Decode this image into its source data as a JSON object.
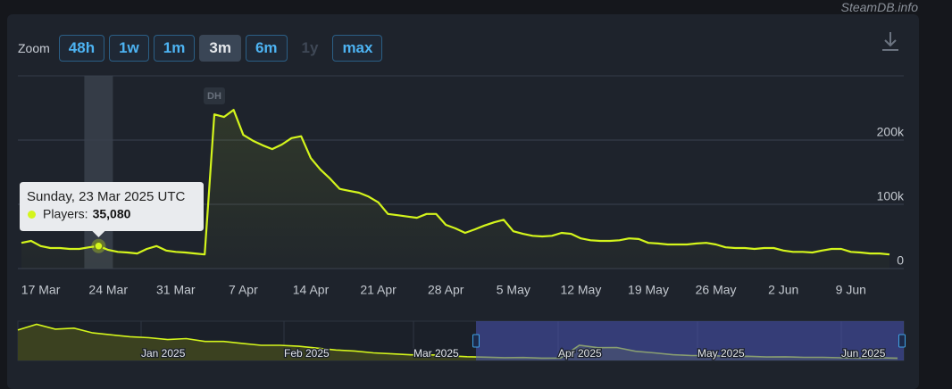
{
  "credits": "SteamDB.info",
  "zoom": {
    "label": "Zoom",
    "buttons": [
      "48h",
      "1w",
      "1m",
      "3m",
      "6m",
      "1y",
      "max"
    ],
    "active": "3m",
    "disabled": [
      "1y"
    ]
  },
  "chart_data": {
    "type": "line",
    "x": [
      "15 Mar",
      "16 Mar",
      "17 Mar",
      "18 Mar",
      "19 Mar",
      "20 Mar",
      "21 Mar",
      "22 Mar",
      "23 Mar",
      "24 Mar",
      "25 Mar",
      "26 Mar",
      "27 Mar",
      "28 Mar",
      "29 Mar",
      "30 Mar",
      "31 Mar",
      "1 Apr",
      "2 Apr",
      "3 Apr",
      "4 Apr",
      "5 Apr",
      "6 Apr",
      "7 Apr",
      "8 Apr",
      "9 Apr",
      "10 Apr",
      "11 Apr",
      "12 Apr",
      "13 Apr",
      "14 Apr",
      "15 Apr",
      "16 Apr",
      "17 Apr",
      "18 Apr",
      "19 Apr",
      "20 Apr",
      "21 Apr",
      "22 Apr",
      "23 Apr",
      "24 Apr",
      "25 Apr",
      "26 Apr",
      "27 Apr",
      "28 Apr",
      "29 Apr",
      "30 Apr",
      "1 May",
      "2 May",
      "3 May",
      "4 May",
      "5 May",
      "6 May",
      "7 May",
      "8 May",
      "9 May",
      "10 May",
      "11 May",
      "12 May",
      "13 May",
      "14 May",
      "15 May",
      "16 May",
      "17 May",
      "18 May",
      "19 May",
      "20 May",
      "21 May",
      "22 May",
      "23 May",
      "24 May",
      "25 May",
      "26 May",
      "27 May",
      "28 May",
      "29 May",
      "30 May",
      "31 May",
      "1 Jun",
      "2 Jun",
      "3 Jun",
      "4 Jun",
      "5 Jun",
      "6 Jun",
      "7 Jun",
      "8 Jun",
      "9 Jun",
      "10 Jun",
      "11 Jun",
      "12 Jun",
      "13 Jun"
    ],
    "series": [
      {
        "name": "Players:",
        "color": "#d4f51c",
        "values": [
          40000,
          43000,
          35000,
          32000,
          32000,
          30500,
          30500,
          33000,
          35080,
          29000,
          26000,
          25000,
          23500,
          30500,
          35000,
          28000,
          26000,
          25000,
          23500,
          22000,
          240000,
          236000,
          247000,
          208000,
          199000,
          192000,
          186000,
          193000,
          203000,
          206000,
          172000,
          154000,
          140000,
          124000,
          121000,
          118000,
          112000,
          103000,
          85000,
          83000,
          81000,
          79000,
          85000,
          85000,
          68000,
          62500,
          55500,
          61000,
          67000,
          72000,
          76000,
          58000,
          54000,
          51000,
          50000,
          51000,
          55500,
          54000,
          47000,
          44000,
          43000,
          43000,
          44000,
          47000,
          46000,
          40000,
          39000,
          37500,
          37500,
          37500,
          39000,
          40000,
          37500,
          33000,
          32000,
          32000,
          30500,
          32000,
          32000,
          28000,
          26000,
          26000,
          25000,
          28000,
          30500,
          30500,
          26000,
          25000,
          23500,
          23500,
          22000
        ],
        "value_labels": [
          null,
          null,
          null,
          null,
          null,
          null,
          null,
          null,
          "35,080",
          null,
          null,
          null,
          null,
          null,
          null,
          null,
          null,
          null,
          null,
          null,
          null,
          null,
          null,
          null,
          null,
          null,
          null,
          null,
          null,
          null,
          null,
          null,
          null,
          null,
          null,
          null,
          null,
          null,
          null,
          null,
          null,
          null,
          null,
          null,
          null,
          null,
          null,
          null,
          null,
          null,
          null,
          null,
          null,
          null,
          null,
          null,
          null,
          null,
          null,
          null,
          null,
          null,
          null,
          null,
          null,
          null,
          null,
          null,
          null,
          null,
          null,
          null,
          null,
          null,
          null,
          null,
          null,
          null,
          null,
          null,
          null,
          null,
          null,
          null,
          null,
          null,
          null,
          null,
          null,
          null,
          null
        ]
      }
    ],
    "xticks": [
      "17 Mar",
      "24 Mar",
      "31 Mar",
      "7 Apr",
      "14 Apr",
      "21 Apr",
      "28 Apr",
      "5 May",
      "12 May",
      "19 May",
      "26 May",
      "2 Jun",
      "9 Jun"
    ],
    "ylim": [
      0,
      300000
    ],
    "yticks": [
      0,
      {
        "value": 100000,
        "label": "100k"
      },
      {
        "value": 200000,
        "label": "200k"
      }
    ],
    "grid": true,
    "annotations": [
      {
        "x": "4 Apr",
        "label": "DH"
      }
    ],
    "tooltip": {
      "title": "Sunday, 23 Mar 2025 UTC"
    },
    "navigator": {
      "labels": [
        "Jan 2025",
        "Feb 2025",
        "Mar 2025",
        "Apr 2025",
        "May 2025",
        "Jun 2025"
      ],
      "ylim": [
        0,
        660000
      ],
      "values": [
        496000,
        592000,
        512000,
        528000,
        448000,
        416000,
        384000,
        368000,
        336000,
        352000,
        304000,
        304000,
        272000,
        240000,
        240000,
        224000,
        192000,
        160000,
        144000,
        112000,
        96000,
        80000,
        80000,
        64000,
        48000,
        40000,
        32000,
        35000,
        23500,
        26000,
        240000,
        199000,
        203000,
        140000,
        112000,
        81000,
        68000,
        67000,
        54000,
        55500,
        43000,
        46000,
        37500,
        37500,
        30500,
        26000,
        30500,
        23500
      ]
    }
  }
}
